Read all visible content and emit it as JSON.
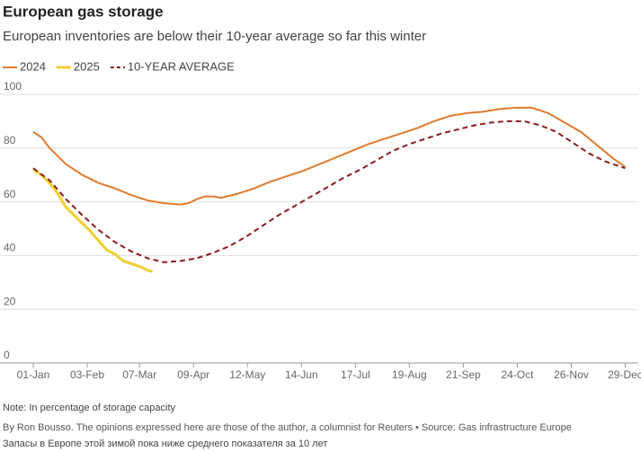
{
  "chart_data": {
    "type": "line",
    "title": "European gas storage",
    "subtitle": "European inventories are below their 10-year average so far this winter",
    "note": "Note: In percentage of storage capacity",
    "byline": "By Ron Bousso. The opinions expressed here are those of the author, a columnist for Reuters • Source: Gas infrastructure Europe",
    "caption": "Запасы в Европе этой зимой пока ниже среднего показателя за 10 лет",
    "xlim": [
      0,
      370
    ],
    "xticks": [
      {
        "value": 0,
        "label": "01-Jan"
      },
      {
        "value": 33,
        "label": "03-Feb"
      },
      {
        "value": 65,
        "label": "07-Mar"
      },
      {
        "value": 98,
        "label": "09-Apr"
      },
      {
        "value": 131,
        "label": "12-May"
      },
      {
        "value": 164,
        "label": "14-Jun"
      },
      {
        "value": 197,
        "label": "17-Jul"
      },
      {
        "value": 230,
        "label": "19-Aug"
      },
      {
        "value": 263,
        "label": "21-Sep"
      },
      {
        "value": 296,
        "label": "24-Oct"
      },
      {
        "value": 329,
        "label": "26-Nov"
      },
      {
        "value": 362,
        "label": "29-Dec"
      }
    ],
    "ylim": [
      0,
      100
    ],
    "yticks": [
      0,
      20,
      40,
      60,
      80,
      100
    ],
    "grid": true,
    "legend": "top-left",
    "series": [
      {
        "name": "2024",
        "color": "#e07a2e",
        "style": "solid",
        "x": [
          0,
          5,
          10,
          20,
          30,
          40,
          50,
          60,
          70,
          80,
          90,
          95,
          100,
          105,
          110,
          115,
          125,
          135,
          145,
          155,
          165,
          175,
          185,
          195,
          205,
          215,
          225,
          235,
          245,
          255,
          265,
          275,
          285,
          295,
          305,
          315,
          325,
          335,
          345,
          355,
          362
        ],
        "values": [
          86,
          84,
          80,
          74,
          70,
          67,
          65,
          62.5,
          60.5,
          59.5,
          59,
          59.5,
          61,
          62,
          62,
          61.5,
          63,
          65,
          67.5,
          69.5,
          71.5,
          74,
          76.5,
          79,
          81.5,
          83.5,
          85.5,
          87.5,
          90,
          92,
          93,
          93.5,
          94.5,
          95,
          95,
          93,
          89.5,
          86,
          81,
          76,
          73
        ]
      },
      {
        "name": "2025",
        "color": "#f2cf2f",
        "style": "solid",
        "x": [
          0,
          5,
          10,
          15,
          20,
          25,
          30,
          35,
          40,
          45,
          50,
          55,
          60,
          65,
          70,
          73
        ],
        "values": [
          72,
          70,
          67,
          63,
          58,
          55,
          52,
          49,
          45.5,
          42,
          40.5,
          38,
          37,
          36,
          34.5,
          34
        ]
      },
      {
        "name": "10-YEAR AVERAGE",
        "color": "#8b1e1e",
        "style": "dashed",
        "x": [
          0,
          10,
          20,
          30,
          40,
          50,
          60,
          70,
          80,
          90,
          100,
          110,
          120,
          130,
          140,
          150,
          160,
          170,
          180,
          190,
          200,
          210,
          220,
          230,
          240,
          250,
          260,
          270,
          280,
          290,
          300,
          310,
          320,
          330,
          340,
          350,
          362
        ],
        "values": [
          72.5,
          68,
          61,
          55,
          49.5,
          45,
          41.5,
          39,
          37.5,
          38,
          39,
          41,
          43.5,
          47,
          51,
          55,
          58.5,
          62,
          65.5,
          69,
          72,
          75.5,
          79,
          81.5,
          83.5,
          85.5,
          87,
          88.5,
          89.5,
          90,
          90,
          88.5,
          86,
          82,
          78,
          75,
          72.5
        ]
      }
    ]
  }
}
